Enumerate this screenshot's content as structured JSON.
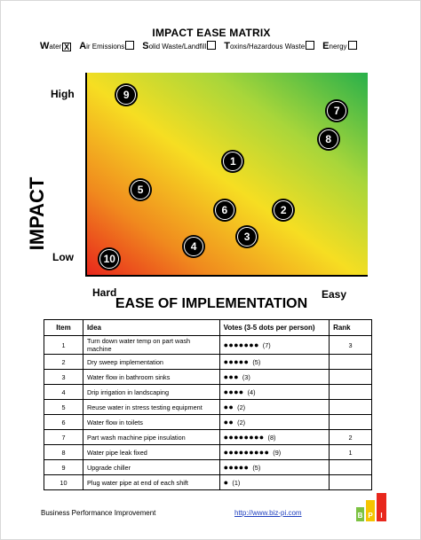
{
  "title": "IMPACT EASE MATRIX",
  "categories": [
    {
      "initial": "W",
      "rest": "ater",
      "checked": true
    },
    {
      "initial": "A",
      "rest": "ir Emissions",
      "checked": false
    },
    {
      "initial": "S",
      "rest": "olid Waste/Landfill",
      "checked": false
    },
    {
      "initial": "T",
      "rest": "oxins/Hazardous Waste",
      "checked": false
    },
    {
      "initial": "E",
      "rest": "nergy",
      "checked": false
    }
  ],
  "check_mark": "X",
  "axis": {
    "y_title": "IMPACT",
    "x_title": "EASE OF IMPLEMENTATION",
    "high": "High",
    "low": "Low",
    "hard": "Hard",
    "easy": "Easy"
  },
  "plot_points": [
    {
      "label": "9",
      "ease": 0.14,
      "impact": 0.89
    },
    {
      "label": "7",
      "ease": 0.89,
      "impact": 0.81
    },
    {
      "label": "8",
      "ease": 0.86,
      "impact": 0.67
    },
    {
      "label": "1",
      "ease": 0.52,
      "impact": 0.56
    },
    {
      "label": "5",
      "ease": 0.19,
      "impact": 0.42
    },
    {
      "label": "6",
      "ease": 0.49,
      "impact": 0.32
    },
    {
      "label": "2",
      "ease": 0.7,
      "impact": 0.32
    },
    {
      "label": "3",
      "ease": 0.57,
      "impact": 0.19
    },
    {
      "label": "4",
      "ease": 0.38,
      "impact": 0.14
    },
    {
      "label": "10",
      "ease": 0.08,
      "impact": 0.08
    }
  ],
  "table": {
    "headers": [
      "Item",
      "Idea",
      "Votes (3-5 dots per person)",
      "Rank"
    ],
    "rows": [
      {
        "item": "1",
        "idea": "Turn down water temp on part wash machine",
        "votes": 7,
        "rank": "3"
      },
      {
        "item": "2",
        "idea": "Dry sweep implementation",
        "votes": 5,
        "rank": ""
      },
      {
        "item": "3",
        "idea": "Water flow in bathroom sinks",
        "votes": 3,
        "rank": ""
      },
      {
        "item": "4",
        "idea": "Drip irrigation in landscaping",
        "votes": 4,
        "rank": ""
      },
      {
        "item": "5",
        "idea": "Reuse water in stress testing equipment",
        "votes": 2,
        "rank": ""
      },
      {
        "item": "6",
        "idea": "Water flow in toilets",
        "votes": 2,
        "rank": ""
      },
      {
        "item": "7",
        "idea": "Part wash machine pipe insulation",
        "votes": 8,
        "rank": "2"
      },
      {
        "item": "8",
        "idea": "Water pipe leak fixed",
        "votes": 9,
        "rank": "1"
      },
      {
        "item": "9",
        "idea": "Upgrade chiller",
        "votes": 5,
        "rank": ""
      },
      {
        "item": "10",
        "idea": "Plug water pipe at end of each shift",
        "votes": 1,
        "rank": ""
      }
    ]
  },
  "footer": {
    "left": "Business Performance Improvement",
    "link": "http://www.biz-pi.com",
    "logo_letters": "BPI"
  },
  "colors": {
    "bar_green": "#7cc242",
    "bar_red": "#e8271c",
    "logo_yellow": "#f5c400"
  }
}
